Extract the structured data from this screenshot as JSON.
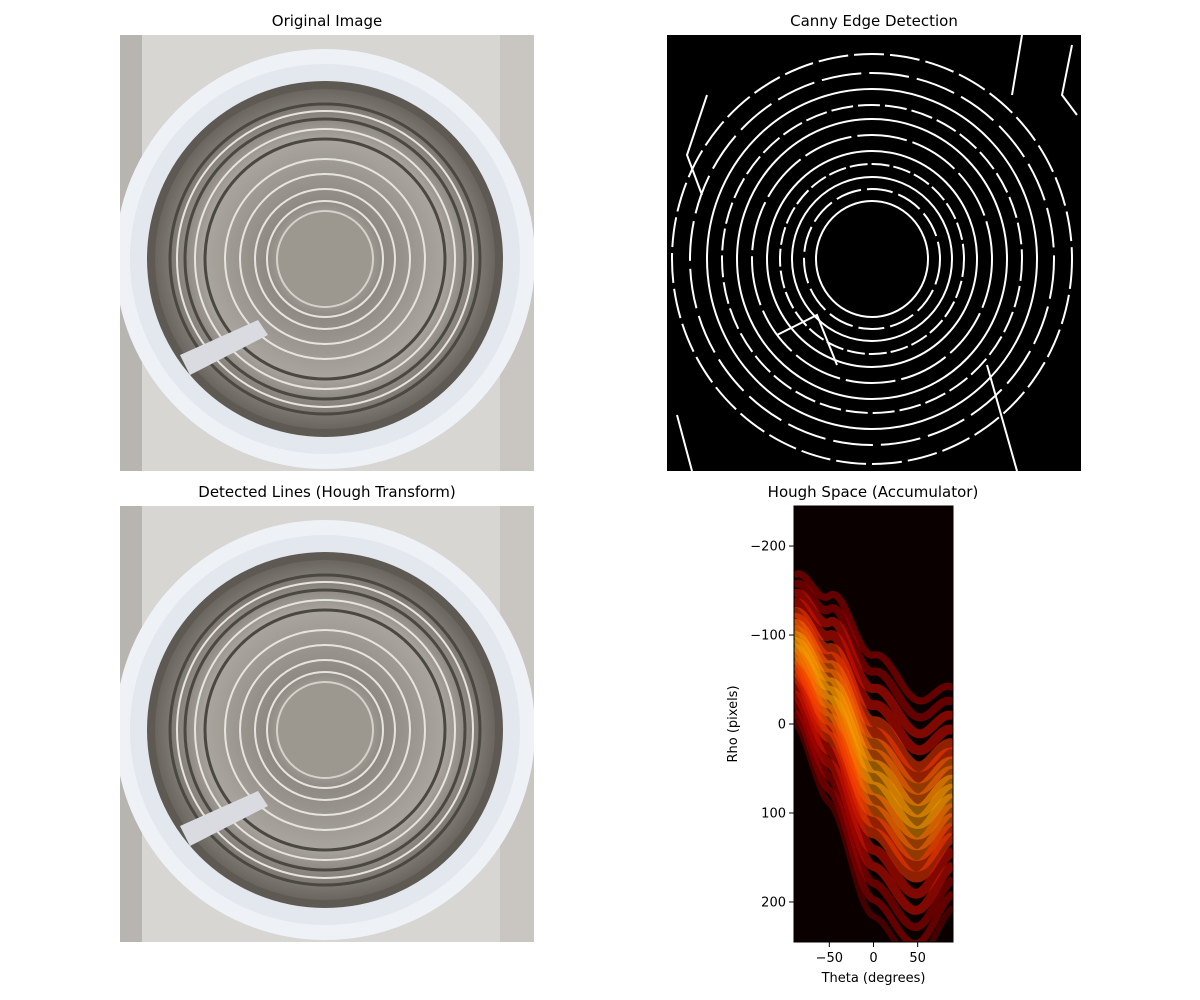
{
  "panels": {
    "original": {
      "title": "Original Image"
    },
    "canny": {
      "title": "Canny Edge Detection"
    },
    "lines": {
      "title": "Detected Lines (Hough Transform)"
    },
    "hough": {
      "title": "Hough Space (Accumulator)"
    }
  },
  "chart_data": [
    {
      "type": "image",
      "title": "Original Image",
      "subject": "top-down photo of a steel drum interior with concentric rings and white liner"
    },
    {
      "type": "image",
      "title": "Canny Edge Detection",
      "subject": "white edge map on black background showing concentric circular edges"
    },
    {
      "type": "image",
      "title": "Detected Lines (Hough Transform)",
      "subject": "same drum photo with detected lines overlay"
    },
    {
      "type": "heatmap",
      "title": "Hough Space (Accumulator)",
      "xlabel": "Theta (degrees)",
      "ylabel": "Rho (pixels)",
      "xlim": [
        -90,
        90
      ],
      "ylim": [
        245,
        -245
      ],
      "xticks": [
        -50,
        0,
        50
      ],
      "yticks": [
        -200,
        -100,
        0,
        100,
        200
      ],
      "colormap": "hot",
      "band_center": [
        {
          "theta": -90,
          "rho": -90
        },
        {
          "theta": -50,
          "rho": -35
        },
        {
          "theta": 0,
          "rho": 60
        },
        {
          "theta": 50,
          "rho": 110
        },
        {
          "theta": 90,
          "rho": 75
        }
      ]
    }
  ],
  "colors": {
    "background": "#ffffff",
    "heatmap_bg": "#0b0000",
    "heat_low": "#b00000",
    "heat_mid": "#ff2a00",
    "heat_high": "#ff9a00"
  }
}
